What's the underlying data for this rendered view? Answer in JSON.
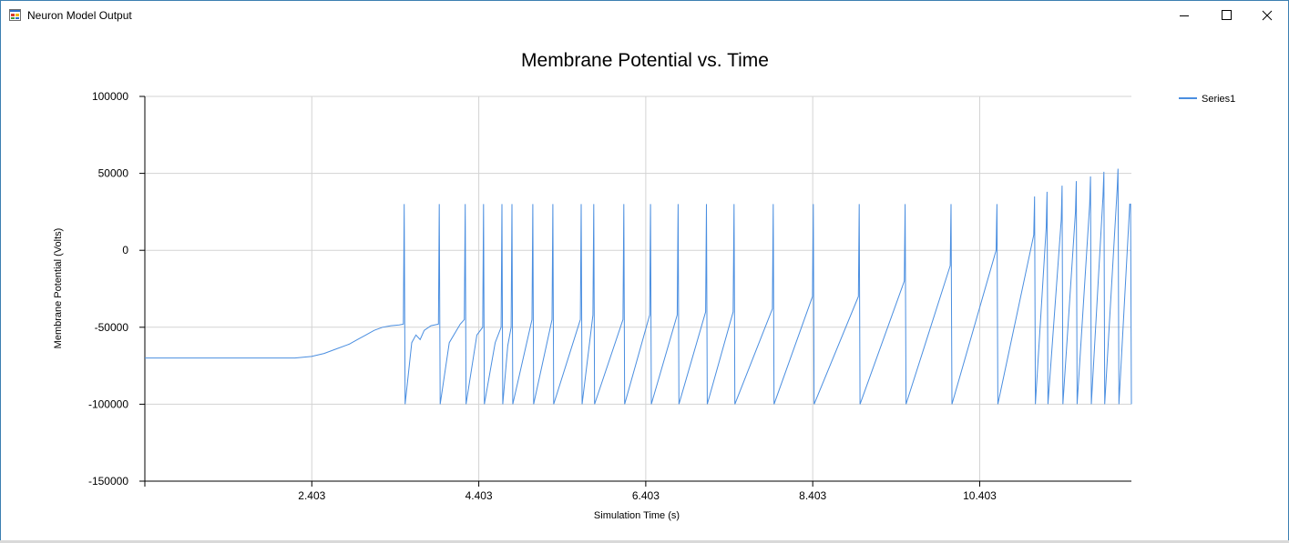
{
  "window": {
    "title": "Neuron Model Output",
    "icon": "app-form-icon",
    "controls": [
      "minimize-icon",
      "maximize-icon",
      "close-icon"
    ]
  },
  "chart_data": {
    "type": "line",
    "title": "Membrane Potential vs. Time",
    "xlabel": "Simulation Time (s)",
    "ylabel": "Membrane Potential (Volts)",
    "xlim": [
      0.403,
      12.22
    ],
    "ylim": [
      -150000,
      100000
    ],
    "xticks": [
      2.403,
      4.403,
      6.403,
      8.403,
      10.403
    ],
    "xtick_labels": [
      "2.403",
      "4.403",
      "6.403",
      "8.403",
      "10.403"
    ],
    "yticks": [
      100000,
      50000,
      0,
      -50000,
      -100000,
      -150000
    ],
    "ytick_labels": [
      "100000",
      "50000",
      "0",
      "-50000",
      "-100000",
      "-150000"
    ],
    "grid": true,
    "legend_position": "top-right",
    "color": "#4a8ee0",
    "series": [
      {
        "name": "Series1",
        "x": [
          0.403,
          1.0,
          1.5,
          2.0,
          2.2,
          2.4,
          2.55,
          2.7,
          2.85,
          2.95,
          3.05,
          3.15,
          3.25,
          3.35,
          3.45,
          3.5,
          3.51,
          3.52,
          3.6,
          3.65,
          3.7,
          3.75,
          3.83,
          3.92,
          3.93,
          3.94,
          4.05,
          4.18,
          4.23,
          4.24,
          4.25,
          4.38,
          4.45,
          4.46,
          4.47,
          4.6,
          4.67,
          4.68,
          4.69,
          4.75,
          4.79,
          4.8,
          4.81,
          5.04,
          5.05,
          5.06,
          5.28,
          5.29,
          5.3,
          5.62,
          5.63,
          5.64,
          5.77,
          5.78,
          5.79,
          6.13,
          6.14,
          6.15,
          6.45,
          6.46,
          6.47,
          6.78,
          6.79,
          6.8,
          7.12,
          7.13,
          7.14,
          7.45,
          7.46,
          7.47,
          7.92,
          7.93,
          7.94,
          8.4,
          8.41,
          8.42,
          8.95,
          8.96,
          8.97,
          9.5,
          9.51,
          9.52,
          10.05,
          10.06,
          10.07,
          10.6,
          10.61,
          10.62,
          11.05,
          11.06,
          11.07,
          11.2,
          11.21,
          11.22,
          11.38,
          11.39,
          11.4,
          11.55,
          11.56,
          11.57,
          11.72,
          11.73,
          11.74,
          11.88,
          11.89,
          11.9,
          12.05,
          12.06,
          12.07,
          12.2,
          12.21,
          12.22
        ],
        "values": [
          -70000,
          -70000,
          -70000,
          -70000,
          -70000,
          -69000,
          -67000,
          -64000,
          -61000,
          -58000,
          -55000,
          -52000,
          -50000,
          -49000,
          -48500,
          -48000,
          30000,
          -100000,
          -60000,
          -55000,
          -58000,
          -52000,
          -49000,
          -48000,
          30000,
          -100000,
          -60000,
          -48000,
          -45000,
          30000,
          -100000,
          -55000,
          -50000,
          30000,
          -100000,
          -60000,
          -50000,
          30000,
          -100000,
          -62000,
          -50000,
          30000,
          -100000,
          -45000,
          30000,
          -100000,
          -45000,
          30000,
          -100000,
          -45000,
          30000,
          -100000,
          -42000,
          30000,
          -100000,
          -45000,
          30000,
          -100000,
          -42000,
          30000,
          -100000,
          -42000,
          30000,
          -100000,
          -40000,
          30000,
          -100000,
          -40000,
          30000,
          -100000,
          -38000,
          30000,
          -100000,
          -30000,
          30000,
          -100000,
          -30000,
          30000,
          -100000,
          -20000,
          30000,
          -100000,
          -10000,
          30000,
          -100000,
          0,
          30000,
          -100000,
          10000,
          35000,
          -100000,
          15000,
          38000,
          -100000,
          20000,
          42000,
          -100000,
          25000,
          45000,
          -100000,
          30000,
          48000,
          -100000,
          35000,
          51000,
          -100000,
          40000,
          53000,
          -100000,
          30000,
          30000,
          -100000
        ]
      }
    ]
  }
}
